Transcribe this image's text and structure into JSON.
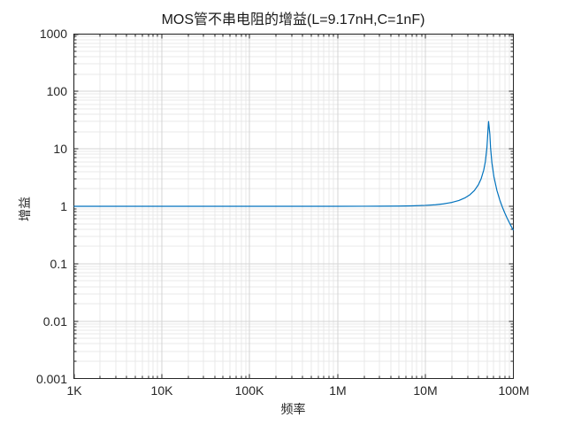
{
  "chart_data": {
    "type": "line",
    "title": "MOS管不串电阻的增益(L=9.17nH,C=1nF)",
    "xlabel": "频率",
    "ylabel": "增益",
    "x_scale": "log",
    "y_scale": "log",
    "xlim": [
      1000,
      100000000
    ],
    "ylim": [
      0.001,
      1000
    ],
    "grid": {
      "major": true,
      "minor": true
    },
    "x_ticks": [
      {
        "v": 1000,
        "label": "1K"
      },
      {
        "v": 10000,
        "label": "10K"
      },
      {
        "v": 100000,
        "label": "100K"
      },
      {
        "v": 1000000,
        "label": "1M"
      },
      {
        "v": 10000000,
        "label": "10M"
      },
      {
        "v": 100000000,
        "label": "100M"
      }
    ],
    "y_ticks": [
      {
        "v": 1000,
        "label": "1000"
      },
      {
        "v": 100,
        "label": "100"
      },
      {
        "v": 10,
        "label": "10"
      },
      {
        "v": 1,
        "label": "1"
      },
      {
        "v": 0.1,
        "label": "0.1"
      },
      {
        "v": 0.01,
        "label": "0.01"
      },
      {
        "v": 0.001,
        "label": "0.001"
      }
    ],
    "series": [
      {
        "name": "增益",
        "color": "#0072BD",
        "points": [
          [
            1000,
            1.0
          ],
          [
            10000,
            1.0
          ],
          [
            100000,
            1.0
          ],
          [
            300000,
            1.0
          ],
          [
            1000000,
            1.0004
          ],
          [
            2000000,
            1.0015
          ],
          [
            3000000,
            1.0033
          ],
          [
            5000000,
            1.0091
          ],
          [
            7000000,
            1.0181
          ],
          [
            10000000,
            1.0376
          ],
          [
            13000000,
            1.0652
          ],
          [
            16000000,
            1.1021
          ],
          [
            20000000,
            1.1693
          ],
          [
            24000000,
            1.2634
          ],
          [
            28000000,
            1.3963
          ],
          [
            32000000,
            1.589
          ],
          [
            36000000,
            1.8837
          ],
          [
            40000000,
            2.377
          ],
          [
            43000000,
            3.024
          ],
          [
            46000000,
            4.273
          ],
          [
            48000000,
            6.02
          ],
          [
            50000000,
            10.52
          ],
          [
            51000000,
            17.1
          ],
          [
            52200000,
            30.0
          ],
          [
            54000000,
            18.0
          ],
          [
            55000000,
            10.53
          ],
          [
            57000000,
            5.68
          ],
          [
            60000000,
            3.3
          ],
          [
            65000000,
            1.888
          ],
          [
            70000000,
            1.292
          ],
          [
            75000000,
            0.965
          ],
          [
            80000000,
            0.76
          ],
          [
            85000000,
            0.619
          ],
          [
            90000000,
            0.518
          ],
          [
            95000000,
            0.441
          ],
          [
            100000000,
            0.382
          ]
        ]
      }
    ]
  },
  "colors": {
    "line": "#0072BD",
    "grid_major": "#d4d4d4",
    "grid_minor": "#e9e9e9",
    "axis": "#262626",
    "background": "#ffffff"
  }
}
